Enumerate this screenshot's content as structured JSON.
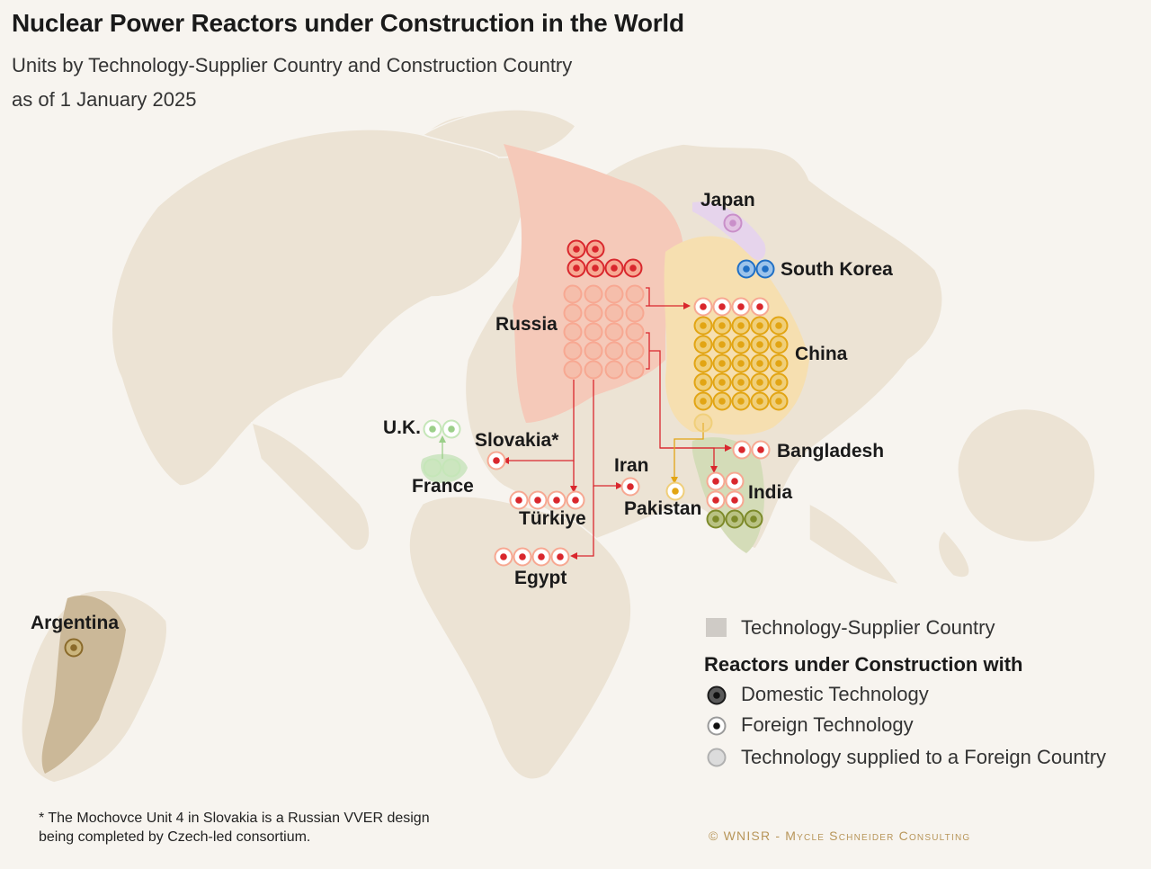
{
  "title": "Nuclear Power Reactors under Construction in the World",
  "subtitle_line1": "Units by Technology-Supplier Country and Construction Country",
  "subtitle_line2": "as of 1 January 2025",
  "colors": {
    "background": "#f7f4ef",
    "land": "#ece3d4",
    "russia": "#d9272d",
    "russia_area": "#f5c9b9",
    "china": "#e2a514",
    "china_area": "#f6dfb0",
    "japan": "#c98fc9",
    "japan_area": "#e6d4ec",
    "south_korea": "#1f6fc5",
    "india": "#7d8a2a",
    "india_area": "#d4dcb8",
    "france": "#9ccf8a",
    "france_area": "#cfe6c4",
    "argentina": "#8a6a2a",
    "argentina_area": "#cbb898",
    "foreign_dot": "#d9272d"
  },
  "countries": {
    "russia": "Russia",
    "china": "China",
    "japan": "Japan",
    "south_korea": "South Korea",
    "india": "India",
    "bangladesh": "Bangladesh",
    "pakistan": "Pakistan",
    "iran": "Iran",
    "turkiye": "Türkiye",
    "egypt": "Egypt",
    "slovakia": "Slovakia*",
    "uk": "U.K.",
    "france": "France",
    "argentina": "Argentina"
  },
  "units": [
    {
      "country": "Russia",
      "supplier": "Russia",
      "type": "domestic",
      "count": 6
    },
    {
      "country": "China",
      "supplier": "China",
      "type": "domestic",
      "count": 25
    },
    {
      "country": "China",
      "supplier": "Russia",
      "type": "foreign",
      "count": 4
    },
    {
      "country": "Japan",
      "supplier": "Japan",
      "type": "domestic",
      "count": 1
    },
    {
      "country": "South Korea",
      "supplier": "South Korea",
      "type": "domestic",
      "count": 2
    },
    {
      "country": "India",
      "supplier": "India",
      "type": "domestic",
      "count": 3
    },
    {
      "country": "India",
      "supplier": "Russia",
      "type": "foreign",
      "count": 4
    },
    {
      "country": "Bangladesh",
      "supplier": "Russia",
      "type": "foreign",
      "count": 2
    },
    {
      "country": "Pakistan",
      "supplier": "China",
      "type": "foreign",
      "count": 1
    },
    {
      "country": "Iran",
      "supplier": "Russia",
      "type": "foreign",
      "count": 1
    },
    {
      "country": "Türkiye",
      "supplier": "Russia",
      "type": "foreign",
      "count": 4
    },
    {
      "country": "Egypt",
      "supplier": "Russia",
      "type": "foreign",
      "count": 4
    },
    {
      "country": "Slovakia*",
      "supplier": "Russia",
      "type": "foreign",
      "count": 1
    },
    {
      "country": "U.K.",
      "supplier": "France",
      "type": "foreign",
      "count": 2
    },
    {
      "country": "Argentina",
      "supplier": "Argentina",
      "type": "domestic",
      "count": 1
    }
  ],
  "supplied_abroad": [
    {
      "supplier": "Russia",
      "count": 20
    },
    {
      "supplier": "China",
      "count": 1
    },
    {
      "supplier": "France",
      "count": 2
    }
  ],
  "legend": {
    "supplier_country": "Technology-Supplier Country",
    "heading": "Reactors under Construction with",
    "domestic": "Domestic Technology",
    "foreign": "Foreign Technology",
    "supplied": "Technology supplied to a Foreign Country"
  },
  "footnote": "* The Mochovce Unit 4 in Slovakia is a Russian VVER design being completed by Czech-led consortium.",
  "credit": "© WNISR - Mycle Schneider Consulting"
}
